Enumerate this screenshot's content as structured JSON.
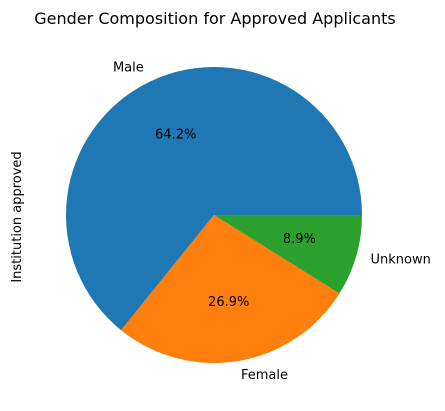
{
  "chart_data": {
    "type": "pie",
    "title": "Gender Composition for Approved Applicants",
    "ylabel": "Institution approved",
    "categories": [
      "Male",
      "Female",
      "Unknown"
    ],
    "values": [
      64.2,
      26.9,
      8.9
    ],
    "percent_labels": [
      "64.2%",
      "26.9%",
      "8.9%"
    ],
    "colors": [
      "#1f77b4",
      "#ff7f0e",
      "#2ca02c"
    ],
    "start_angle_deg": 0,
    "direction": "counterclockwise"
  }
}
